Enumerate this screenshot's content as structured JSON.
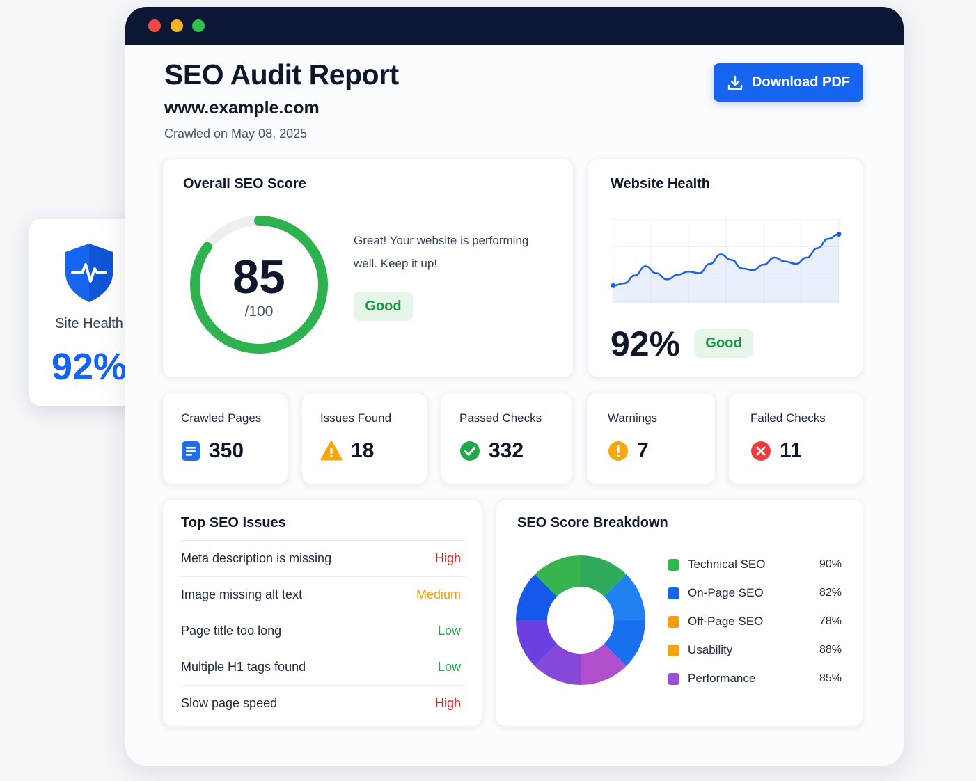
{
  "report": {
    "title": "SEO Audit Report",
    "url": "www.example.com",
    "crawled": "Crawled on May 08, 2025",
    "download_label": "Download PDF"
  },
  "score_card": {
    "title": "Overall SEO Score",
    "score": "85",
    "max": "/100",
    "score_fraction": 0.85,
    "message": "Great! Your website is performing well. Keep it up!",
    "badge": "Good"
  },
  "health_card": {
    "title": "Website Health",
    "value": "92%",
    "badge": "Good",
    "trend": [
      0.22,
      0.25,
      0.35,
      0.47,
      0.38,
      0.3,
      0.36,
      0.4,
      0.38,
      0.5,
      0.62,
      0.55,
      0.44,
      0.42,
      0.49,
      0.58,
      0.53,
      0.5,
      0.58,
      0.7,
      0.82,
      0.88
    ]
  },
  "site_health": {
    "label": "Site Health",
    "value": "92%"
  },
  "stats": [
    {
      "label": "Crawled Pages",
      "value": "350",
      "icon": "document-icon"
    },
    {
      "label": "Issues Found",
      "value": "18",
      "icon": "warning-triangle-icon"
    },
    {
      "label": "Passed Checks",
      "value": "332",
      "icon": "check-circle-icon"
    },
    {
      "label": "Warnings",
      "value": "7",
      "icon": "exclamation-circle-icon"
    },
    {
      "label": "Failed Checks",
      "value": "11",
      "icon": "x-circle-icon"
    }
  ],
  "issues": {
    "title": "Top SEO Issues",
    "rows": [
      {
        "text": "Meta description is missing",
        "severity": "High"
      },
      {
        "text": "Image missing alt text",
        "severity": "Medium"
      },
      {
        "text": "Page title too long",
        "severity": "Low"
      },
      {
        "text": "Multiple H1 tags found",
        "severity": "Low"
      },
      {
        "text": "Slow page speed",
        "severity": "High"
      }
    ]
  },
  "breakdown": {
    "title": "SEO Score Breakdown",
    "items": [
      {
        "name": "Technical SEO",
        "value": "90%",
        "color": "#2fb84f"
      },
      {
        "name": "On-Page SEO",
        "value": "82%",
        "color": "#1565f0"
      },
      {
        "name": "Off-Page SEO",
        "value": "78%",
        "color": "#f59e0b"
      },
      {
        "name": "Usability",
        "value": "88%",
        "color": "#f5a30b"
      },
      {
        "name": "Performance",
        "value": "85%",
        "color": "#9b4fd6"
      }
    ]
  },
  "colors": {
    "accent": "#1565f0",
    "good": "#1a9a3c",
    "high": "#e11d1d",
    "medium": "#f59e0b",
    "low": "#1ea84a"
  }
}
